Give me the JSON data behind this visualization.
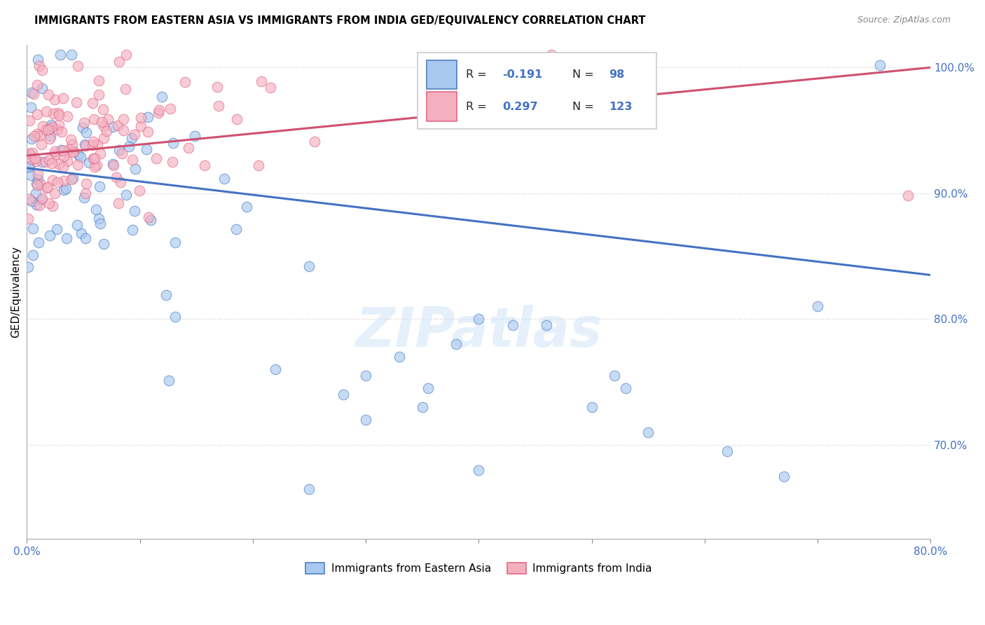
{
  "title": "IMMIGRANTS FROM EASTERN ASIA VS IMMIGRANTS FROM INDIA GED/EQUIVALENCY CORRELATION CHART",
  "source": "Source: ZipAtlas.com",
  "ylabel": "GED/Equivalency",
  "xmin": 0.0,
  "xmax": 0.8,
  "ymin": 0.625,
  "ymax": 1.018,
  "R_blue": -0.191,
  "N_blue": 98,
  "R_pink": 0.297,
  "N_pink": 123,
  "legend_label_blue": "Immigrants from Eastern Asia",
  "legend_label_pink": "Immigrants from India",
  "blue_fill": "#a8c8f0",
  "pink_fill": "#f5b0c0",
  "blue_edge": "#5080c0",
  "pink_edge": "#e06888",
  "blue_line": "#4472c4",
  "pink_line": "#d05070",
  "watermark": "ZIPatlas",
  "ytick_vals": [
    0.7,
    0.8,
    0.9,
    1.0
  ],
  "ytick_labels": [
    "70.0%",
    "80.0%",
    "90.0%",
    "100.0%"
  ]
}
